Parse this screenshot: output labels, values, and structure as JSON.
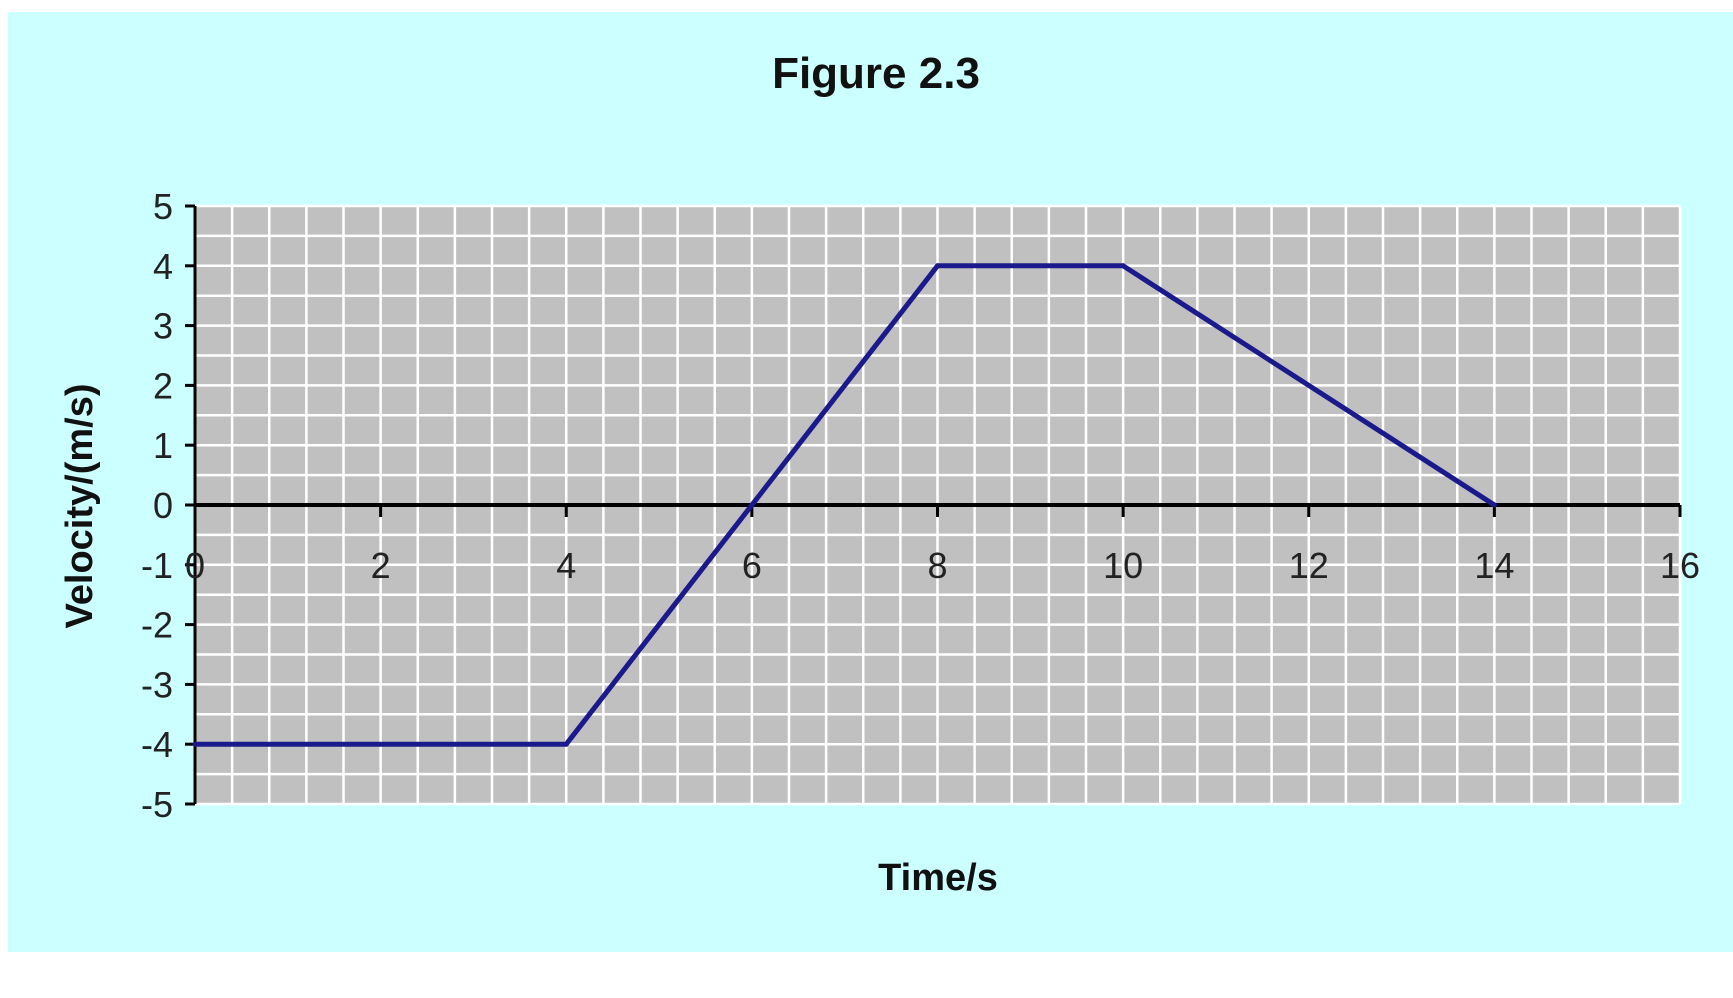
{
  "chart_data": {
    "type": "line",
    "title": "Figure 2.3",
    "xlabel": "Time/s",
    "ylabel": "Velocity/(m/s)",
    "xlim": [
      0,
      16
    ],
    "ylim": [
      -5,
      5
    ],
    "x_ticks": [
      "0",
      "2",
      "4",
      "6",
      "8",
      "10",
      "12",
      "14",
      "16"
    ],
    "y_ticks": [
      "5",
      "4",
      "3",
      "2",
      "1",
      "0",
      "-1",
      "-2",
      "-3",
      "-4",
      "-5"
    ],
    "x_minor_step": 0.4,
    "y_minor_step": 0.5,
    "grid": true,
    "legend": "none",
    "series": [
      {
        "x": [
          0,
          4,
          8,
          10,
          14
        ],
        "y": [
          -4,
          -4,
          4,
          4,
          0
        ]
      }
    ],
    "colors": {
      "background": "#ccffff",
      "plot_area": "#c0c0c0",
      "grid": "#ffffff",
      "line": "#1a1a8c",
      "axis": "#000000"
    }
  }
}
